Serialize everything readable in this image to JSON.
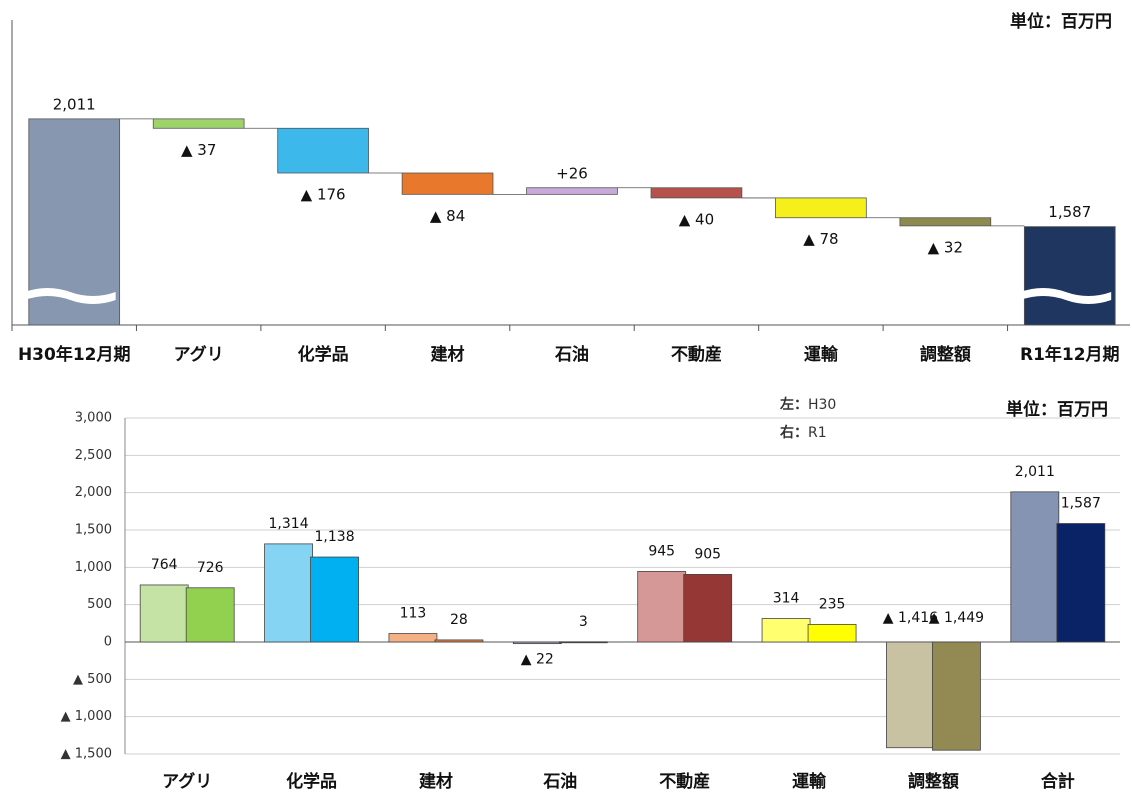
{
  "chart_data": [
    {
      "type": "waterfall",
      "unit_label": "単位：百万円",
      "categories": [
        "H30年12月期",
        "アグリ",
        "化学品",
        "建材",
        "石油",
        "不動産",
        "運輸",
        "調整額",
        "R1年12月期"
      ],
      "values": [
        2011,
        -37,
        -176,
        -84,
        26,
        -40,
        -78,
        -32,
        1587
      ],
      "value_labels": [
        "2,011",
        "▲ 37",
        "▲ 176",
        "▲ 84",
        "+26",
        "▲ 40",
        "▲ 78",
        "▲ 32",
        "1,587"
      ],
      "colors": [
        "#8797b0",
        "#9dd36a",
        "#3cb8ea",
        "#e8792c",
        "#c7aad9",
        "#b5524c",
        "#f5f01c",
        "#8e8b4e",
        "#1f3660"
      ],
      "ylim": [
        1200,
        2400
      ]
    },
    {
      "type": "grouped_bar",
      "unit_label": "単位：百万円",
      "categories": [
        "アグリ",
        "化学品",
        "建材",
        "石油",
        "不動産",
        "運輸",
        "調整額",
        "合計"
      ],
      "series": [
        {
          "side": "左：",
          "name": "H30",
          "colors": [
            "#c4e3a4",
            "#86d4f3",
            "#f4b183",
            "#9fa8bb",
            "#d59896",
            "#ffff70",
            "#c9c2a2",
            "#8494b2"
          ],
          "values": [
            764,
            1314,
            113,
            -22,
            945,
            314,
            -1416,
            2011
          ],
          "value_labels": [
            "764",
            "1,314",
            "113",
            "▲ 22",
            "945",
            "314",
            "▲ 1,416",
            "2,011"
          ]
        },
        {
          "side": "右：",
          "name": "R1",
          "colors": [
            "#92d050",
            "#00b0f0",
            "#e07a40",
            "#3b4a6b",
            "#953735",
            "#ffff00",
            "#938953",
            "#0a2366"
          ],
          "values": [
            726,
            1138,
            28,
            3,
            905,
            235,
            -1449,
            1587
          ],
          "value_labels": [
            "726",
            "1,138",
            "28",
            "3",
            "905",
            "235",
            "▲ 1,449",
            "1,587"
          ]
        }
      ],
      "ylim": [
        -1500,
        3000
      ],
      "yticks": [
        {
          "value": 3000,
          "label": "3,000"
        },
        {
          "value": 2500,
          "label": "2,500"
        },
        {
          "value": 2000,
          "label": "2,000"
        },
        {
          "value": 1500,
          "label": "1,500"
        },
        {
          "value": 1000,
          "label": "1,000"
        },
        500,
        0,
        {
          "value": -500,
          "label": "▲ 500"
        },
        {
          "value": -1000,
          "label": "▲ 1,000"
        },
        {
          "value": -1500,
          "label": "▲ 1,500"
        }
      ],
      "grid": true
    }
  ]
}
